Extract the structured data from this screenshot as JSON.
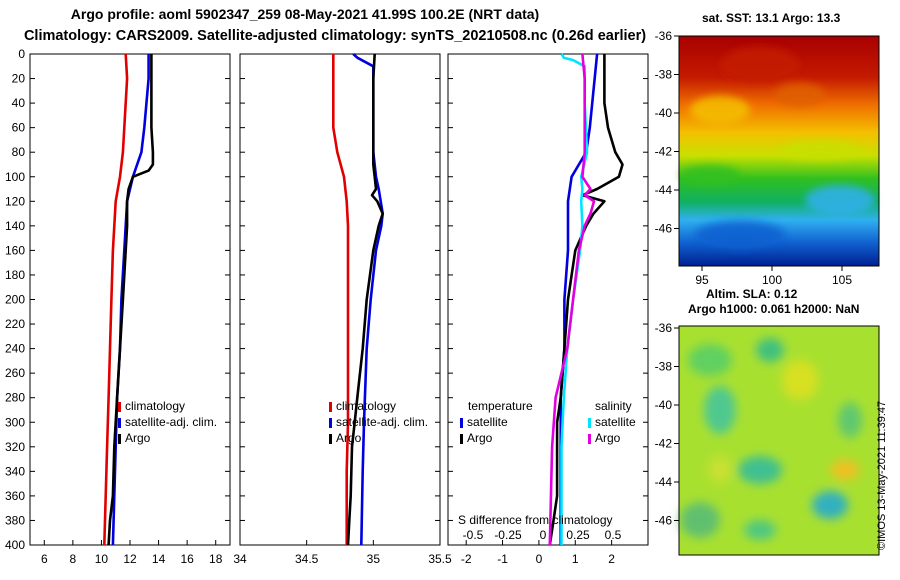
{
  "title_line1": "Argo profile: aoml 5902347_259 08-May-2021 41.99S 100.2E (NRT data)",
  "title_line2": "Climatology: CARS2009. Satellite-adjusted climatology: synTS_20210508.nc (0.26d earlier)",
  "depth_ticks": [
    "0",
    "20",
    "40",
    "60",
    "80",
    "100",
    "120",
    "140",
    "160",
    "180",
    "200",
    "220",
    "240",
    "260",
    "280",
    "300",
    "320",
    "340",
    "360",
    "380",
    "400"
  ],
  "colors": {
    "climatology": "#e00000",
    "satellite": "#0000e0",
    "argo": "#000000",
    "sat_salinity": "#00e5ff",
    "argo_salinity": "#e000e0"
  },
  "legend1": {
    "climatology": "climatology",
    "satellite": "satellite-adj. clim.",
    "argo": "Argo"
  },
  "legend2": {
    "climatology": "climatology",
    "satellite": "satellite-adj. clim.",
    "argo": "Argo"
  },
  "legend3": {
    "temp_title": "temperature",
    "sal_title": "salinity",
    "satellite": "satellite",
    "argo": "Argo",
    "sat2": "satellite",
    "argo2": "Argo",
    "xlabel": "S difference from climatology"
  },
  "sst_map": {
    "title": "sat. SST: 13.1  Argo: 13.3",
    "lat_ticks": [
      "-36",
      "-38",
      "-40",
      "-42",
      "-44",
      "-46"
    ],
    "lon_ticks": [
      "95",
      "100",
      "105"
    ]
  },
  "sla_map": {
    "title1": "Altim. SLA: 0.12",
    "title2": "Argo h1000: 0.061 h2000: NaN",
    "lat_ticks": [
      "-36",
      "-38",
      "-40",
      "-42",
      "-44",
      "-46"
    ]
  },
  "imos": "©IMOS 13-May-2021 11:39:47",
  "chart_data": [
    {
      "type": "line",
      "name": "temperature",
      "xlim": [
        5,
        19
      ],
      "ylim": [
        0,
        400
      ],
      "xticks": [
        6,
        8,
        10,
        12,
        14,
        16,
        18
      ],
      "xticklabels": [
        "6",
        "8",
        "10",
        "12",
        "14",
        "16",
        "18"
      ],
      "series": [
        {
          "name": "climatology",
          "depth": [
            0,
            20,
            60,
            80,
            100,
            120,
            140,
            160,
            200,
            240,
            280,
            320,
            360,
            400
          ],
          "values": [
            11.7,
            11.8,
            11.6,
            11.5,
            11.3,
            11.0,
            10.9,
            10.8,
            10.7,
            10.6,
            10.5,
            10.4,
            10.3,
            10.2
          ]
        },
        {
          "name": "satellite-adj. clim.",
          "depth": [
            0,
            20,
            60,
            80,
            100,
            120,
            140,
            160,
            200,
            240,
            280,
            320,
            360,
            400
          ],
          "values": [
            13.3,
            13.3,
            13.0,
            12.8,
            12.2,
            11.8,
            11.7,
            11.6,
            11.4,
            11.3,
            11.1,
            11.0,
            10.9,
            10.8
          ]
        },
        {
          "name": "Argo",
          "depth": [
            0,
            20,
            40,
            60,
            80,
            90,
            95,
            100,
            110,
            120,
            140,
            160,
            200,
            240,
            280,
            300,
            320,
            360,
            380,
            400
          ],
          "values": [
            13.5,
            13.5,
            13.5,
            13.5,
            13.6,
            13.6,
            13.3,
            12.2,
            11.9,
            11.8,
            11.8,
            11.7,
            11.5,
            11.3,
            11.1,
            11.0,
            10.9,
            10.8,
            10.6,
            10.5
          ]
        }
      ]
    },
    {
      "type": "line",
      "name": "salinity",
      "xlim": [
        34,
        35.5
      ],
      "ylim": [
        0,
        400
      ],
      "xticks": [
        34,
        34.5,
        35,
        35.5
      ],
      "xticklabels": [
        "34",
        "34.5",
        "35",
        "35.5"
      ],
      "series": [
        {
          "name": "climatology",
          "depth": [
            0,
            40,
            60,
            80,
            100,
            120,
            140,
            160,
            200,
            260,
            300,
            340,
            400
          ],
          "values": [
            34.7,
            34.7,
            34.7,
            34.73,
            34.78,
            34.8,
            34.81,
            34.81,
            34.81,
            34.81,
            34.81,
            34.8,
            34.8
          ]
        },
        {
          "name": "satellite-adj. clim.",
          "depth": [
            0,
            3,
            10,
            20,
            60,
            80,
            100,
            110,
            130,
            140,
            160,
            200,
            240,
            300,
            340,
            400
          ],
          "values": [
            34.85,
            34.88,
            35.0,
            35.0,
            35.0,
            35.0,
            35.02,
            35.04,
            35.07,
            35.06,
            35.02,
            34.98,
            34.95,
            34.93,
            34.92,
            34.91
          ]
        },
        {
          "name": "Argo",
          "depth": [
            0,
            20,
            60,
            80,
            90,
            100,
            110,
            115,
            120,
            130,
            140,
            160,
            200,
            240,
            280,
            300,
            320,
            360,
            380,
            400
          ],
          "values": [
            35.01,
            35.0,
            35.0,
            35.0,
            35.0,
            35.01,
            35.02,
            34.99,
            35.03,
            35.07,
            35.04,
            35.0,
            34.95,
            34.92,
            34.88,
            34.86,
            34.84,
            34.83,
            34.82,
            34.81
          ]
        }
      ]
    },
    {
      "type": "line",
      "name": "difference from climatology",
      "xlabel": "S difference from climatology",
      "xlim": [
        -2.5,
        3
      ],
      "ylim": [
        0,
        400
      ],
      "xticks": [
        -2,
        -1,
        0,
        1,
        2
      ],
      "xticklabels": [
        "-2",
        "-1",
        "0",
        "1",
        "2"
      ],
      "sxticks": [
        -0.5,
        -0.25,
        0,
        0.25,
        0.5
      ],
      "sxticklabels": [
        "-0.5",
        "-0.25",
        "0",
        "0.25",
        "0.5"
      ],
      "series": [
        {
          "name": "temperature satellite",
          "depth": [
            0,
            60,
            80,
            90,
            100,
            120,
            160,
            200,
            240,
            280,
            320,
            400
          ],
          "values": [
            1.6,
            1.4,
            1.3,
            1.1,
            0.9,
            0.8,
            0.8,
            0.7,
            0.7,
            0.6,
            0.6,
            0.6
          ]
        },
        {
          "name": "temperature Argo",
          "depth": [
            0,
            40,
            60,
            80,
            90,
            100,
            110,
            115,
            120,
            130,
            140,
            160,
            200,
            240,
            280,
            300,
            320,
            360,
            380,
            400
          ],
          "values": [
            1.8,
            1.8,
            1.9,
            2.1,
            2.3,
            2.2,
            1.6,
            1.2,
            1.8,
            1.5,
            1.3,
            1.0,
            0.8,
            0.7,
            0.6,
            0.5,
            0.5,
            0.5,
            0.4,
            0.3
          ]
        },
        {
          "name": "salinity satellite",
          "depth": [
            0,
            3,
            5,
            10,
            20,
            40,
            80,
            100,
            110,
            120,
            140,
            160,
            200,
            240,
            280,
            320,
            400
          ],
          "values": [
            0.1,
            0.12,
            0.2,
            0.3,
            0.3,
            0.3,
            0.32,
            0.27,
            0.28,
            0.27,
            0.28,
            0.26,
            0.2,
            0.15,
            0.12,
            0.1,
            0.1
          ]
        },
        {
          "name": "salinity Argo",
          "depth": [
            0,
            20,
            40,
            80,
            100,
            110,
            115,
            120,
            130,
            140,
            160,
            200,
            240,
            280,
            320,
            400
          ],
          "values": [
            0.28,
            0.3,
            0.3,
            0.3,
            0.28,
            0.35,
            0.3,
            0.38,
            0.35,
            0.3,
            0.25,
            0.2,
            0.15,
            0.05,
            0.02,
            0.0
          ]
        }
      ]
    }
  ]
}
